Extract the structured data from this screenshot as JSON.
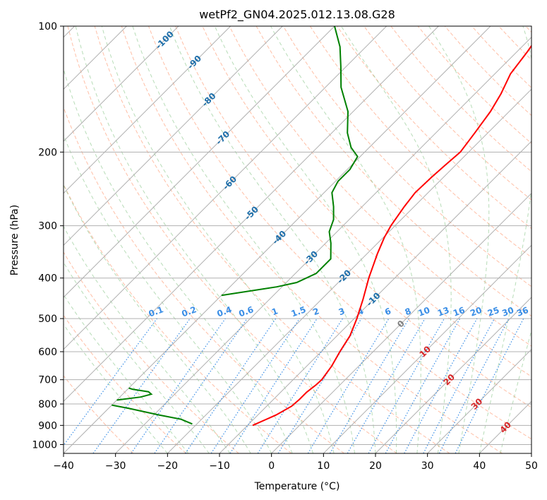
{
  "chart_data": {
    "type": "line",
    "subtype": "skew-t log-p diagram",
    "title": "wetPf2_GN04.2025.012.13.08.G28",
    "xlabel": "Temperature (°C)",
    "ylabel": "Pressure (hPa)",
    "xlim": [
      -40,
      50
    ],
    "ylim": [
      1050,
      100
    ],
    "y_scale": "log",
    "x_ticks": [
      -40,
      -30,
      -20,
      -10,
      0,
      10,
      20,
      30,
      40,
      50
    ],
    "y_ticks": [
      1000,
      900,
      800,
      700,
      600,
      500,
      400,
      300,
      200,
      100
    ],
    "grid": true,
    "series": [
      {
        "role": "temperature",
        "color": "#ff0000",
        "points": [
          {
            "p": 900,
            "t": -9.0
          },
          {
            "p": 850,
            "t": -6.5
          },
          {
            "p": 810,
            "t": -5.2
          },
          {
            "p": 780,
            "t": -5.0
          },
          {
            "p": 750,
            "t": -5.0
          },
          {
            "p": 720,
            "t": -4.6
          },
          {
            "p": 700,
            "t": -4.5
          },
          {
            "p": 650,
            "t": -5.2
          },
          {
            "p": 600,
            "t": -6.4
          },
          {
            "p": 550,
            "t": -7.5
          },
          {
            "p": 500,
            "t": -9.5
          },
          {
            "p": 450,
            "t": -12.0
          },
          {
            "p": 400,
            "t": -15.0
          },
          {
            "p": 350,
            "t": -18.0
          },
          {
            "p": 320,
            "t": -19.8
          },
          {
            "p": 300,
            "t": -20.8
          },
          {
            "p": 270,
            "t": -21.9
          },
          {
            "p": 250,
            "t": -22.5
          },
          {
            "p": 230,
            "t": -22.3
          },
          {
            "p": 215,
            "t": -22.0
          },
          {
            "p": 200,
            "t": -21.6
          },
          {
            "p": 180,
            "t": -22.5
          },
          {
            "p": 160,
            "t": -23.6
          },
          {
            "p": 145,
            "t": -25.0
          },
          {
            "p": 130,
            "t": -27.0
          },
          {
            "p": 115,
            "t": -28.0
          },
          {
            "p": 100,
            "t": -29.5
          }
        ]
      },
      {
        "role": "dewpoint",
        "color": "#008000",
        "segments": [
          [
            {
              "p": 893,
              "t": -20.9
            },
            {
              "p": 870,
              "t": -24.0
            },
            {
              "p": 850,
              "t": -29.0
            },
            {
              "p": 820,
              "t": -36.0
            },
            {
              "p": 805,
              "t": -40.0
            }
          ],
          [
            {
              "p": 783,
              "t": -40.0
            },
            {
              "p": 770,
              "t": -36.0
            },
            {
              "p": 758,
              "t": -34.5
            },
            {
              "p": 748,
              "t": -35.5
            },
            {
              "p": 738,
              "t": -39.0
            },
            {
              "p": 733,
              "t": -40.0
            }
          ],
          [
            {
              "p": 440,
              "t": -40.0
            },
            {
              "p": 420,
              "t": -31.0
            },
            {
              "p": 410,
              "t": -28.0
            },
            {
              "p": 390,
              "t": -26.0
            },
            {
              "p": 360,
              "t": -26.0
            },
            {
              "p": 330,
              "t": -29.0
            },
            {
              "p": 310,
              "t": -31.5
            },
            {
              "p": 290,
              "t": -33.0
            },
            {
              "p": 270,
              "t": -35.5
            },
            {
              "p": 250,
              "t": -38.5
            },
            {
              "p": 235,
              "t": -39.5
            },
            {
              "p": 220,
              "t": -39.5
            },
            {
              "p": 205,
              "t": -40.5
            },
            {
              "p": 195,
              "t": -43.5
            },
            {
              "p": 180,
              "t": -47.0
            },
            {
              "p": 160,
              "t": -51.0
            },
            {
              "p": 140,
              "t": -57.0
            },
            {
              "p": 125,
              "t": -61.0
            },
            {
              "p": 112,
              "t": -65.0
            },
            {
              "p": 100,
              "t": -70.0
            }
          ]
        ]
      }
    ],
    "isotherm_labels": [
      "-100",
      "-90",
      "-80",
      "-70",
      "-60",
      "-50",
      "-40",
      "-30",
      "-20",
      "-10",
      "0",
      "10",
      "20",
      "30",
      "40"
    ],
    "mixing_ratio_labels": [
      "0.1",
      "0.2",
      "0.4",
      "0.6",
      "1",
      "1.5",
      "2",
      "3",
      "4",
      "6",
      "8",
      "10",
      "13",
      "16",
      "20",
      "25",
      "30",
      "36"
    ],
    "colors": {
      "isotherm": "#b0b0b0",
      "dry_adiabat": "#ffaa88",
      "moist_adiabat": "#7bbf7b",
      "mixing_ratio": "#3a8ee6",
      "isotherm_label_cold": "#1f6faa",
      "isotherm_label_warm": "#d62728",
      "isotherm_label_zero": "#808080",
      "left_curve": "#e6d3b8"
    }
  }
}
